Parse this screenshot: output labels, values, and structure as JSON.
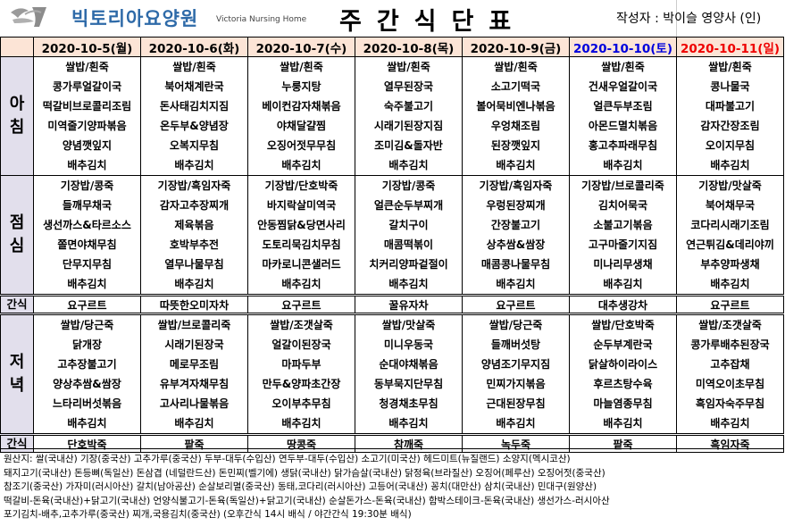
{
  "header": {
    "brand": "빅토리아요양원",
    "brand_en": "Victoria Nursing Home",
    "title": "주간식단표",
    "author": "작성자 : 박이슬 영양사 (인)"
  },
  "labels": {
    "breakfast": "아침",
    "lunch": "점심",
    "dinner": "저녁",
    "snack": "간식"
  },
  "colors": {
    "date_bg": "#fce4d6",
    "label_bg": "#e2dfec",
    "saturday": "#0000dd",
    "sunday": "#ee0000",
    "brand": "#2e6aa8"
  },
  "days": [
    {
      "date": "2020-10-5(월)",
      "breakfast": [
        "쌀밥/흰죽",
        "콩가루얼갈이국",
        "떡갈비브로콜리조림",
        "미역줄기양파볶음",
        "양념깻잎지",
        "배추김치"
      ],
      "lunch": [
        "기장밥/콩죽",
        "들깨무채국",
        "생선까스&타르소스",
        "쫄면야채무침",
        "단무지무침",
        "배추김치"
      ],
      "snack1": "요구르트",
      "dinner": [
        "쌀밥/당근죽",
        "닭개장",
        "고추장불고기",
        "양상추쌈&쌈장",
        "느타리버섯볶음",
        "배추김치"
      ],
      "snack2": "단호박죽"
    },
    {
      "date": "2020-10-6(화)",
      "breakfast": [
        "쌀밥/흰죽",
        "북어채계란국",
        "돈사태김치지짐",
        "온두부&양념장",
        "오복지무침",
        "배추김치"
      ],
      "lunch": [
        "기장밥/흑임자죽",
        "감자고추장찌개",
        "제육볶음",
        "호박부추전",
        "열무나물무침",
        "배추김치"
      ],
      "snack1": "따뜻한오미자차",
      "dinner": [
        "쌀밥/브로콜리죽",
        "시래기된장국",
        "메로무조림",
        "유부겨자채무침",
        "고사리나물볶음",
        "배추김치"
      ],
      "snack2": "팥죽"
    },
    {
      "date": "2020-10-7(수)",
      "breakfast": [
        "쌀밥/흰죽",
        "누룽지탕",
        "베이컨감자채볶음",
        "야채달걀찜",
        "오징어젓무무침",
        "배추김치"
      ],
      "lunch": [
        "기장밥/단호박죽",
        "바지락살미역국",
        "안동찜닭&당면사리",
        "도토리묵김치무침",
        "마카로니콘샐러드",
        "배추김치"
      ],
      "snack1": "요구르트",
      "dinner": [
        "쌀밥/조갯살죽",
        "얼갈이된장국",
        "마파두부",
        "만두&양파초간장",
        "오이부추무침",
        "배추김치"
      ],
      "snack2": "땅콩죽"
    },
    {
      "date": "2020-10-8(목)",
      "breakfast": [
        "쌀밥/흰죽",
        "열무된장국",
        "숙주불고기",
        "시래기된장지짐",
        "조미김&돌자반",
        "배추김치"
      ],
      "lunch": [
        "기장밥/콩죽",
        "얼큰순두부찌개",
        "갈치구이",
        "매콤떡볶이",
        "치커리양파겉절이",
        "배추김치"
      ],
      "snack1": "꿀유자차",
      "dinner": [
        "쌀밥/맛살죽",
        "미니우동국",
        "순대야채볶음",
        "동부묵지단무침",
        "청경채초무침",
        "배추김치"
      ],
      "snack2": "참깨죽"
    },
    {
      "date": "2020-10-9(금)",
      "breakfast": [
        "쌀밥/흰죽",
        "소고기떡국",
        "볼어묵비엔나볶음",
        "우엉채조림",
        "된장깻잎지",
        "배추김치"
      ],
      "lunch": [
        "기장밥/흑임자죽",
        "우렁된장찌개",
        "간장불고기",
        "상추쌈&쌈장",
        "매콤콩나물무침",
        "배추김치"
      ],
      "snack1": "요구르트",
      "dinner": [
        "쌀밥/당근죽",
        "들깨버섯탕",
        "양념조기무지짐",
        "민찌가지볶음",
        "근대된장무침",
        "배추김치"
      ],
      "snack2": "녹두죽"
    },
    {
      "date": "2020-10-10(토)",
      "type": "sat",
      "breakfast": [
        "쌀밥/흰죽",
        "건새우얼갈이국",
        "얼큰두부조림",
        "아몬드멸치볶음",
        "홍고추파래무침",
        "배추김치"
      ],
      "lunch": [
        "기장밥/브로콜리죽",
        "김치어묵국",
        "소불고기볶음",
        "고구마줄기지짐",
        "미나리무생채",
        "배추김치"
      ],
      "snack1": "대추생강차",
      "dinner": [
        "쌀밥/단호박죽",
        "순두부계란국",
        "닭살하이라이스",
        "후르츠탕수육",
        "마늘염종무침",
        "배추김치"
      ],
      "snack2": "팥죽"
    },
    {
      "date": "2020-10-11(일)",
      "type": "sun",
      "breakfast": [
        "쌀밥/흰죽",
        "콩나물국",
        "대파불고기",
        "감자간장조림",
        "오이지무침",
        "배추김치"
      ],
      "lunch": [
        "기장밥/맛살죽",
        "북어채무국",
        "코다리시래기조림",
        "연근튀김&데리야끼",
        "부추양파생채",
        "배추김치"
      ],
      "snack1": "요구르트",
      "dinner": [
        "쌀밥/조갯살죽",
        "콩가루배추된장국",
        "고추잡채",
        "미역오이초무침",
        "흑임자숙주무침",
        "배추김치"
      ],
      "snack2": "흑임자죽"
    }
  ],
  "footer": [
    "원산지: 쌀(국내산) 기장(중국산) 고추가루(중국산) 두부-대두(수입산) 연두부-대두(수입산) 소고기(미국산) 헤드미트(뉴질랜드) 소양지(멕시코산)",
    "돼지고기(국내산) 돈등뼈(독일산) 돈삼겹 (네덜란드산) 돈민찌(벨기에) 생닭(국내산) 닭가슴살(국내산) 닭정육(브라질산) 오징어(페루산) 오징어젓(중국산)",
    "참조기(중국산) 가자미(러시아산) 갈치(남아공산) 순살보리멸(중국산) 동태,코다리(러시아산) 고등어(국내산) 꽁치(대만산) 삼치(국내산) 민대구(원양산)",
    "떡갈비-돈육(국내산)+닭고기(국내산) 언양식불고기-돈육(독일산)+닭고기(국내산) 순살돈가스-돈육(국내산) 함박스테이크-돈육(국내산) 생선가스-러시아산",
    "포기김치-배추,고추가루(중국산)  찌개,국용김치(중국산)   (오후간식 14시 배식 / 야간간식 19:30분 배식)"
  ]
}
